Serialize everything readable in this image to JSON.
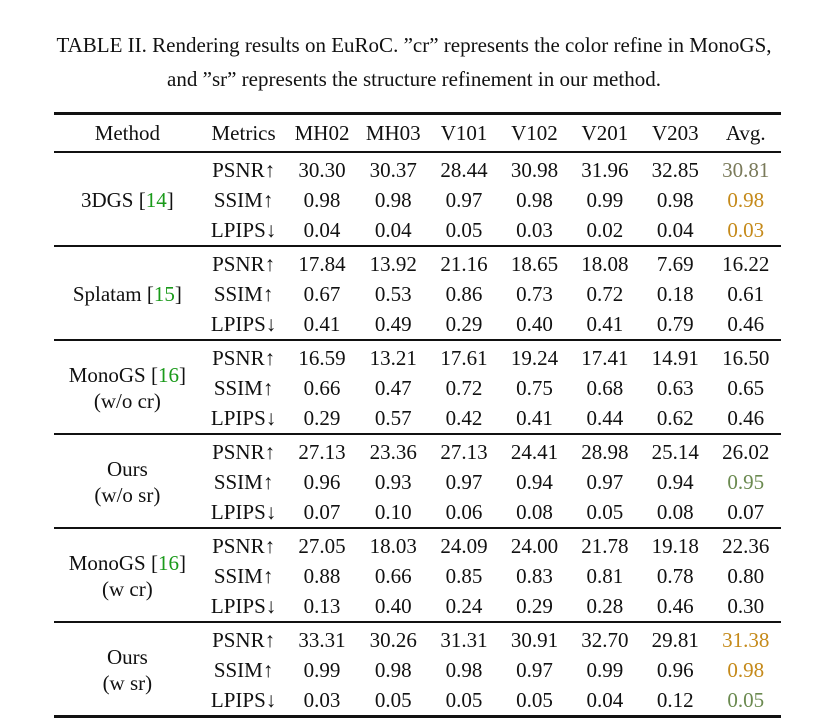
{
  "caption": {
    "label": "TABLE II.",
    "text": " Rendering results on EuRoC. ”cr” represents the color refine in MonoGS, and ”sr” represents the structure refinement in our method."
  },
  "header": [
    "Method",
    "Metrics",
    "MH02",
    "MH03",
    "V101",
    "V102",
    "V201",
    "V203",
    "Avg."
  ],
  "groups": [
    {
      "method_line1": "3DGS [",
      "ref": "14",
      "method_line1_end": "]",
      "method_line2": "",
      "rows": [
        {
          "metric": "PSNR↑",
          "values": [
            "30.30",
            "30.37",
            "28.44",
            "30.98",
            "31.96",
            "32.85",
            "30.81"
          ],
          "bold": [
            false,
            true,
            false,
            true,
            false,
            true,
            false
          ],
          "avg_color": "gray"
        },
        {
          "metric": "SSIM↑",
          "values": [
            "0.98",
            "0.98",
            "0.97",
            "0.98",
            "0.99",
            "0.98",
            "0.98"
          ],
          "bold": [
            false,
            true,
            false,
            true,
            true,
            true,
            false
          ],
          "avg_color": "orange"
        },
        {
          "metric": "LPIPS↓",
          "values": [
            "0.04",
            "0.04",
            "0.05",
            "0.03",
            "0.02",
            "0.04",
            "0.03"
          ],
          "bold": [
            false,
            true,
            true,
            true,
            true,
            true,
            false
          ],
          "avg_color": "orange"
        }
      ]
    },
    {
      "method_line1": "Splatam [",
      "ref": "15",
      "method_line1_end": "]",
      "method_line2": "",
      "rows": [
        {
          "metric": "PSNR↑",
          "values": [
            "17.84",
            "13.92",
            "21.16",
            "18.65",
            "18.08",
            "7.69",
            "16.22"
          ],
          "bold": [
            false,
            false,
            false,
            false,
            false,
            false,
            false
          ],
          "avg_color": ""
        },
        {
          "metric": "SSIM↑",
          "values": [
            "0.67",
            "0.53",
            "0.86",
            "0.73",
            "0.72",
            "0.18",
            "0.61"
          ],
          "bold": [
            false,
            false,
            false,
            false,
            false,
            false,
            false
          ],
          "avg_color": ""
        },
        {
          "metric": "LPIPS↓",
          "values": [
            "0.41",
            "0.49",
            "0.29",
            "0.40",
            "0.41",
            "0.79",
            "0.46"
          ],
          "bold": [
            false,
            false,
            false,
            false,
            false,
            false,
            false
          ],
          "avg_color": ""
        }
      ]
    },
    {
      "method_line1": "MonoGS [",
      "ref": "16",
      "method_line1_end": "]",
      "method_line2": "(w/o cr)",
      "rows": [
        {
          "metric": "PSNR↑",
          "values": [
            "16.59",
            "13.21",
            "17.61",
            "19.24",
            "17.41",
            "14.91",
            "16.50"
          ],
          "bold": [
            false,
            false,
            false,
            false,
            false,
            false,
            false
          ],
          "avg_color": ""
        },
        {
          "metric": "SSIM↑",
          "values": [
            "0.66",
            "0.47",
            "0.72",
            "0.75",
            "0.68",
            "0.63",
            "0.65"
          ],
          "bold": [
            false,
            false,
            false,
            false,
            false,
            false,
            false
          ],
          "avg_color": ""
        },
        {
          "metric": "LPIPS↓",
          "values": [
            "0.29",
            "0.57",
            "0.42",
            "0.41",
            "0.44",
            "0.62",
            "0.46"
          ],
          "bold": [
            false,
            false,
            false,
            false,
            false,
            false,
            false
          ],
          "avg_color": ""
        }
      ]
    },
    {
      "method_line1": "Ours",
      "ref": "",
      "method_line1_end": "",
      "method_line2": "(w/o sr)",
      "rows": [
        {
          "metric": "PSNR↑",
          "values": [
            "27.13",
            "23.36",
            "27.13",
            "24.41",
            "28.98",
            "25.14",
            "26.02"
          ],
          "bold": [
            false,
            false,
            false,
            false,
            false,
            false,
            false
          ],
          "avg_color": ""
        },
        {
          "metric": "SSIM↑",
          "values": [
            "0.96",
            "0.93",
            "0.97",
            "0.94",
            "0.97",
            "0.94",
            "0.95"
          ],
          "bold": [
            false,
            false,
            false,
            false,
            false,
            false,
            false
          ],
          "avg_color": "olive"
        },
        {
          "metric": "LPIPS↓",
          "values": [
            "0.07",
            "0.10",
            "0.06",
            "0.08",
            "0.05",
            "0.08",
            "0.07"
          ],
          "bold": [
            false,
            false,
            false,
            false,
            false,
            false,
            false
          ],
          "avg_color": ""
        }
      ]
    },
    {
      "method_line1": "MonoGS [",
      "ref": "16",
      "method_line1_end": "]",
      "method_line2": "(w cr)",
      "rows": [
        {
          "metric": "PSNR↑",
          "values": [
            "27.05",
            "18.03",
            "24.09",
            "24.00",
            "21.78",
            "19.18",
            "22.36"
          ],
          "bold": [
            false,
            false,
            false,
            false,
            false,
            false,
            false
          ],
          "avg_color": ""
        },
        {
          "metric": "SSIM↑",
          "values": [
            "0.88",
            "0.66",
            "0.85",
            "0.83",
            "0.81",
            "0.78",
            "0.80"
          ],
          "bold": [
            false,
            false,
            false,
            false,
            false,
            false,
            false
          ],
          "avg_color": ""
        },
        {
          "metric": "LPIPS↓",
          "values": [
            "0.13",
            "0.40",
            "0.24",
            "0.29",
            "0.28",
            "0.46",
            "0.30"
          ],
          "bold": [
            false,
            false,
            false,
            false,
            false,
            false,
            false
          ],
          "avg_color": ""
        }
      ]
    },
    {
      "method_line1": "Ours",
      "ref": "",
      "method_line1_end": "",
      "method_line2": "(w sr)",
      "rows": [
        {
          "metric": "PSNR↑",
          "values": [
            "33.31",
            "30.26",
            "31.31",
            "30.91",
            "32.70",
            "29.81",
            "31.38"
          ],
          "bold": [
            true,
            false,
            true,
            false,
            true,
            false,
            false
          ],
          "avg_color": "orange"
        },
        {
          "metric": "SSIM↑",
          "values": [
            "0.99",
            "0.98",
            "0.98",
            "0.97",
            "0.99",
            "0.96",
            "0.98"
          ],
          "bold": [
            true,
            true,
            true,
            false,
            true,
            false,
            false
          ],
          "avg_color": "orange"
        },
        {
          "metric": "LPIPS↓",
          "values": [
            "0.03",
            "0.05",
            "0.05",
            "0.05",
            "0.04",
            "0.12",
            "0.05"
          ],
          "bold": [
            true,
            false,
            true,
            false,
            false,
            false,
            false
          ],
          "avg_color": "olive"
        }
      ]
    }
  ],
  "colors": {
    "ref_green": "#1a9a1a",
    "gray": "#7a7a5a",
    "orange": "#c58a1a",
    "olive": "#6b8a50"
  }
}
